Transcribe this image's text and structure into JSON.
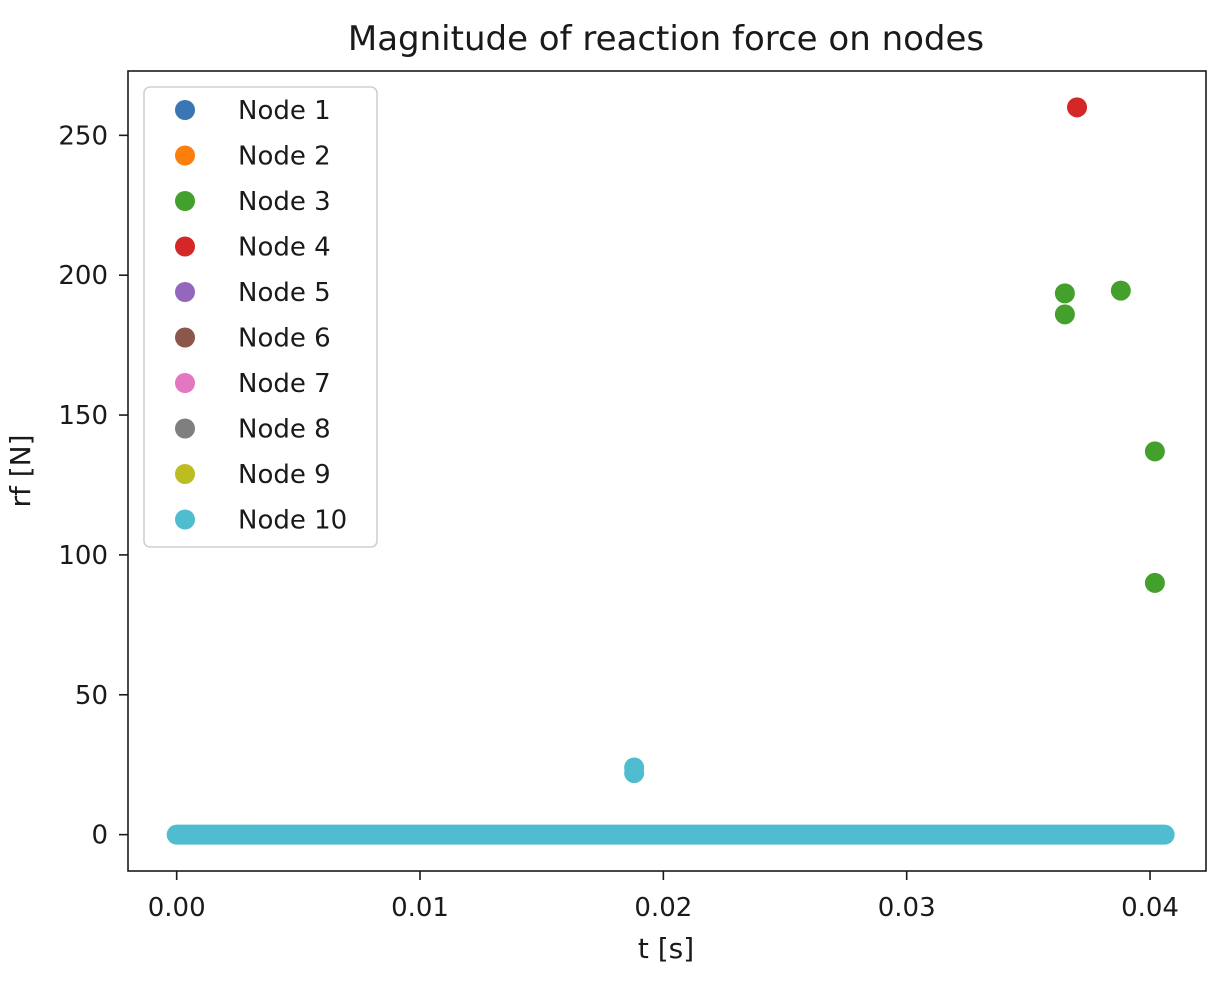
{
  "chart_data": {
    "type": "scatter",
    "title": "Magnitude of reaction force on nodes",
    "xlabel": "t [s]",
    "ylabel": "rf [N]",
    "xlim": [
      -0.002,
      0.0423
    ],
    "ylim": [
      -13,
      273
    ],
    "x_ticks": [
      0.0,
      0.01,
      0.02,
      0.03,
      0.04
    ],
    "x_tick_labels": [
      "0.00",
      "0.01",
      "0.02",
      "0.03",
      "0.04"
    ],
    "y_ticks": [
      0,
      50,
      100,
      150,
      200,
      250
    ],
    "y_tick_labels": [
      "0",
      "50",
      "100",
      "150",
      "200",
      "250"
    ],
    "grid": false,
    "legend_position": "upper-left",
    "baseline": {
      "description": "dense run of points at zero across all time steps",
      "x_range": [
        0.0,
        0.0406
      ],
      "y": 0
    },
    "series": [
      {
        "name": "Node 1",
        "color": "#3a75b4",
        "points": []
      },
      {
        "name": "Node 2",
        "color": "#fc7f0e",
        "points": []
      },
      {
        "name": "Node 3",
        "color": "#44a02c",
        "points": [
          [
            0.0365,
            193.5
          ],
          [
            0.0365,
            186.0
          ],
          [
            0.0388,
            194.5
          ],
          [
            0.0402,
            137.0
          ],
          [
            0.0402,
            90.0
          ]
        ]
      },
      {
        "name": "Node 4",
        "color": "#d42828",
        "points": [
          [
            0.037,
            260.0
          ]
        ]
      },
      {
        "name": "Node 5",
        "color": "#9467bd",
        "points": []
      },
      {
        "name": "Node 6",
        "color": "#8c564b",
        "points": []
      },
      {
        "name": "Node 7",
        "color": "#e377c2",
        "points": []
      },
      {
        "name": "Node 8",
        "color": "#7f7f7f",
        "points": []
      },
      {
        "name": "Node 9",
        "color": "#bcbd22",
        "points": []
      },
      {
        "name": "Node 10",
        "color": "#4fbcd0",
        "points": [
          [
            0.0188,
            24.0
          ],
          [
            0.0188,
            22.0
          ]
        ]
      }
    ]
  }
}
